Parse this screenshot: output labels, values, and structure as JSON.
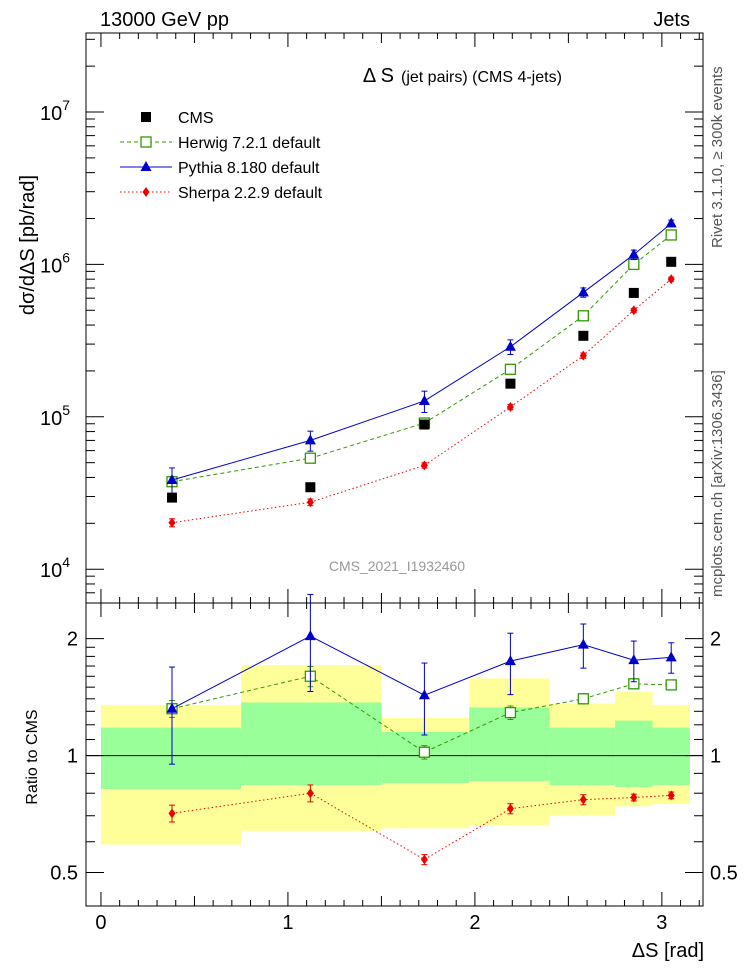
{
  "header": {
    "left": "13000 GeV pp",
    "right": "Jets"
  },
  "side_labels": {
    "rivet": "Rivet 3.1.10, ≥ 300k events",
    "mcplots": "mcplots.cern.ch [arXiv:1306.3436]"
  },
  "chart_data": [
    {
      "type": "scatter",
      "panel": "main",
      "title": "Δ S",
      "title_suffix": "(jet pairs) (CMS 4-jets)",
      "ylabel": "dσ/dΔS [pb/rad]",
      "yscale": "log",
      "xlim": [
        -0.08,
        3.22
      ],
      "ylim": [
        6000,
        33000000
      ],
      "ytick_labels": [
        {
          "mantissa": "10",
          "exp": "4",
          "value": 10000
        },
        {
          "mantissa": "10",
          "exp": "5",
          "value": 100000
        },
        {
          "mantissa": "10",
          "exp": "6",
          "value": 1000000
        },
        {
          "mantissa": "10",
          "exp": "7",
          "value": 10000000
        }
      ],
      "watermark": "CMS_2021_I1932460",
      "legend": [
        "CMS",
        "Herwig 7.2.1 default",
        "Pythia 8.180 default",
        "Sherpa 2.2.9 default"
      ],
      "x": [
        0.38,
        1.12,
        1.73,
        2.19,
        2.58,
        2.85,
        3.05
      ],
      "series": [
        {
          "name": "CMS",
          "color": "#000000",
          "marker": "square",
          "line": "none",
          "values": [
            29500,
            34500,
            89000,
            165000,
            340000,
            650000,
            1040000
          ]
        },
        {
          "name": "Herwig 7.2.1 default",
          "color": "#339900",
          "marker": "open-square",
          "line": "dashed",
          "values": [
            37500,
            53500,
            91000,
            205000,
            460000,
            1000000,
            1560000
          ],
          "err": [
            0.04,
            0.05,
            0.06,
            0.06,
            0.04,
            0.03,
            0.02
          ]
        },
        {
          "name": "Pythia 8.180 default",
          "color": "#0000cc",
          "marker": "triangle",
          "line": "solid",
          "values": [
            38500,
            70000,
            127000,
            288000,
            655000,
            1160000,
            1860000
          ],
          "err": [
            0.2,
            0.15,
            0.16,
            0.11,
            0.07,
            0.07,
            0.05
          ]
        },
        {
          "name": "Sherpa 2.2.9 default",
          "color": "#ee0000",
          "marker": "diamond",
          "line": "dotted",
          "values": [
            20200,
            27500,
            48000,
            116000,
            252000,
            500000,
            800000
          ],
          "err": [
            0.06,
            0.05,
            0.04,
            0.04,
            0.04,
            0.03,
            0.03
          ]
        }
      ]
    },
    {
      "type": "line",
      "panel": "ratio",
      "ylabel": "Ratio to CMS",
      "xlabel": "ΔS [rad]",
      "yscale": "log",
      "ylim": [
        0.41,
        2.47
      ],
      "yticks": [
        0.5,
        1,
        2
      ],
      "ytick_labels": [
        "0.5",
        "1",
        "2"
      ],
      "xlim": [
        -0.08,
        3.22
      ],
      "xticks": [
        0,
        1,
        2,
        3
      ],
      "xtick_labels": [
        "0",
        "1",
        "2",
        "3"
      ],
      "x": [
        0.38,
        1.12,
        1.73,
        2.19,
        2.58,
        2.85,
        3.05
      ],
      "bands": {
        "edges": [
          0.0,
          0.75,
          1.5,
          1.97,
          2.4,
          2.75,
          2.95,
          3.15
        ],
        "green_lo": [
          0.82,
          0.84,
          0.85,
          0.86,
          0.84,
          0.83,
          0.84
        ],
        "green_hi": [
          1.18,
          1.37,
          1.15,
          1.33,
          1.18,
          1.23,
          1.18
        ],
        "yellow_lo": [
          0.59,
          0.64,
          0.65,
          0.66,
          0.7,
          0.74,
          0.75
        ],
        "yellow_hi": [
          1.35,
          1.71,
          1.25,
          1.58,
          1.36,
          1.46,
          1.35
        ]
      },
      "series": [
        {
          "name": "Herwig 7.2.1 default",
          "color": "#339900",
          "marker": "open-square",
          "line": "dashed",
          "values": [
            1.32,
            1.6,
            1.02,
            1.29,
            1.4,
            1.53,
            1.52
          ],
          "err": [
            0.05,
            0.06,
            0.04,
            0.04,
            0.03,
            0.03,
            0.02
          ]
        },
        {
          "name": "Pythia 8.180 default",
          "color": "#0000cc",
          "marker": "triangle",
          "line": "solid",
          "values": [
            1.32,
            2.03,
            1.43,
            1.75,
            1.93,
            1.76,
            1.79
          ],
          "err": [
            0.28,
            0.28,
            0.21,
            0.18,
            0.13,
            0.12,
            0.09
          ]
        },
        {
          "name": "Sherpa 2.2.9 default",
          "color": "#ee0000",
          "marker": "diamond",
          "line": "dotted",
          "values": [
            0.71,
            0.8,
            0.54,
            0.73,
            0.77,
            0.78,
            0.79
          ],
          "err": [
            0.05,
            0.05,
            0.03,
            0.03,
            0.03,
            0.02,
            0.02
          ]
        }
      ]
    }
  ]
}
